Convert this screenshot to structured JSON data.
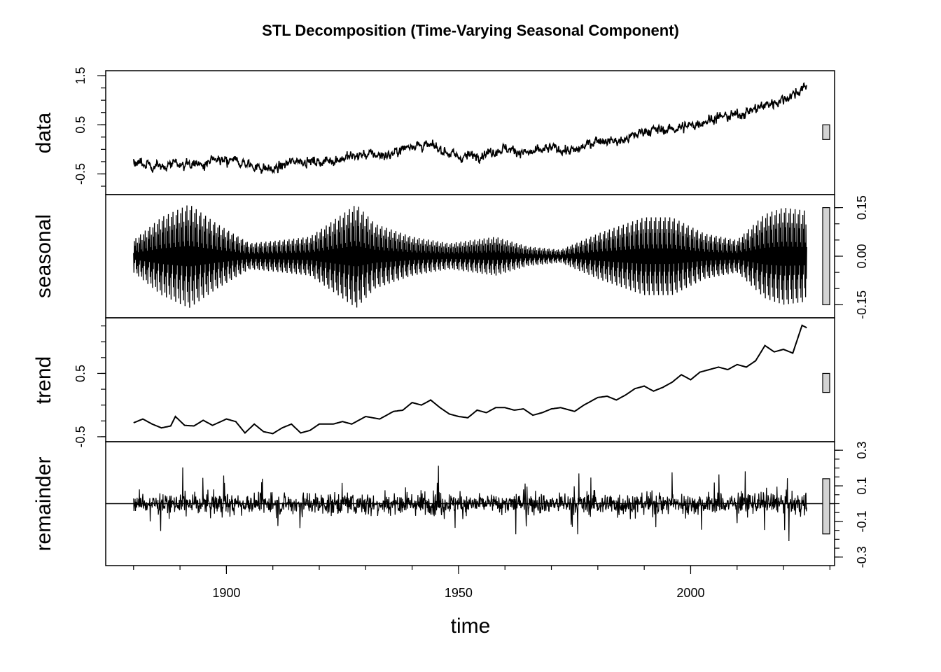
{
  "chart_data": {
    "type": "line",
    "title": "STL Decomposition (Time-Varying Seasonal Component)",
    "xlabel": "time",
    "xlim": [
      1874,
      2031
    ],
    "x_ticks": [
      "1900",
      "1950",
      "2000"
    ],
    "x_start": 1880,
    "x_end": 2025,
    "grid": false,
    "panels": [
      {
        "name": "data",
        "ylim": [
          -0.82,
          1.5
        ],
        "y_ticks": [
          "-0.5",
          "0.5",
          "1.5"
        ],
        "axis_side": "left",
        "scale_bar": [
          0.2,
          0.5
        ],
        "approx_values": [
          {
            "x": 1880,
            "y": -0.25
          },
          {
            "x": 1885,
            "y": -0.35
          },
          {
            "x": 1890,
            "y": -0.3
          },
          {
            "x": 1895,
            "y": -0.3
          },
          {
            "x": 1900,
            "y": -0.18
          },
          {
            "x": 1905,
            "y": -0.32
          },
          {
            "x": 1910,
            "y": -0.42
          },
          {
            "x": 1915,
            "y": -0.22
          },
          {
            "x": 1920,
            "y": -0.26
          },
          {
            "x": 1925,
            "y": -0.18
          },
          {
            "x": 1930,
            "y": -0.1
          },
          {
            "x": 1935,
            "y": -0.12
          },
          {
            "x": 1940,
            "y": 0.1
          },
          {
            "x": 1945,
            "y": 0.05
          },
          {
            "x": 1950,
            "y": -0.16
          },
          {
            "x": 1955,
            "y": -0.1
          },
          {
            "x": 1960,
            "y": 0.02
          },
          {
            "x": 1965,
            "y": -0.08
          },
          {
            "x": 1970,
            "y": 0.02
          },
          {
            "x": 1975,
            "y": -0.04
          },
          {
            "x": 1980,
            "y": 0.2
          },
          {
            "x": 1985,
            "y": 0.16
          },
          {
            "x": 1990,
            "y": 0.38
          },
          {
            "x": 1995,
            "y": 0.4
          },
          {
            "x": 2000,
            "y": 0.48
          },
          {
            "x": 2005,
            "y": 0.64
          },
          {
            "x": 2010,
            "y": 0.7
          },
          {
            "x": 2015,
            "y": 0.86
          },
          {
            "x": 2020,
            "y": 1.02
          },
          {
            "x": 2023,
            "y": 1.17
          },
          {
            "x": 2025,
            "y": 1.28
          }
        ]
      },
      {
        "name": "seasonal",
        "ylim": [
          -0.175,
          0.175
        ],
        "y_ticks": [
          "-0.15",
          "0.00",
          "0.15"
        ],
        "axis_side": "right",
        "scale_bar": [
          -0.15,
          0.15
        ],
        "approx_amplitude": [
          {
            "x": 1880,
            "a": 0.05
          },
          {
            "x": 1886,
            "a": 0.12
          },
          {
            "x": 1892,
            "a": 0.16
          },
          {
            "x": 1898,
            "a": 0.1
          },
          {
            "x": 1905,
            "a": 0.04
          },
          {
            "x": 1912,
            "a": 0.05
          },
          {
            "x": 1918,
            "a": 0.06
          },
          {
            "x": 1925,
            "a": 0.13
          },
          {
            "x": 1928,
            "a": 0.16
          },
          {
            "x": 1932,
            "a": 0.1
          },
          {
            "x": 1940,
            "a": 0.06
          },
          {
            "x": 1948,
            "a": 0.04
          },
          {
            "x": 1958,
            "a": 0.06
          },
          {
            "x": 1965,
            "a": 0.03
          },
          {
            "x": 1972,
            "a": 0.02
          },
          {
            "x": 1980,
            "a": 0.07
          },
          {
            "x": 1990,
            "a": 0.12
          },
          {
            "x": 1996,
            "a": 0.12
          },
          {
            "x": 2003,
            "a": 0.07
          },
          {
            "x": 2010,
            "a": 0.05
          },
          {
            "x": 2016,
            "a": 0.13
          },
          {
            "x": 2020,
            "a": 0.15
          },
          {
            "x": 2025,
            "a": 0.14
          }
        ]
      },
      {
        "name": "trend",
        "ylim": [
          -0.5,
          1.3
        ],
        "y_ticks": [
          "-0.5",
          "0.5"
        ],
        "axis_side": "left",
        "scale_bar": [
          0.2,
          0.5
        ],
        "approx_values": [
          {
            "x": 1880,
            "y": -0.28
          },
          {
            "x": 1882,
            "y": -0.22
          },
          {
            "x": 1884,
            "y": -0.3
          },
          {
            "x": 1886,
            "y": -0.36
          },
          {
            "x": 1888,
            "y": -0.33
          },
          {
            "x": 1889,
            "y": -0.18
          },
          {
            "x": 1891,
            "y": -0.32
          },
          {
            "x": 1893,
            "y": -0.33
          },
          {
            "x": 1895,
            "y": -0.24
          },
          {
            "x": 1897,
            "y": -0.32
          },
          {
            "x": 1900,
            "y": -0.22
          },
          {
            "x": 1902,
            "y": -0.26
          },
          {
            "x": 1904,
            "y": -0.44
          },
          {
            "x": 1906,
            "y": -0.3
          },
          {
            "x": 1908,
            "y": -0.42
          },
          {
            "x": 1910,
            "y": -0.45
          },
          {
            "x": 1912,
            "y": -0.36
          },
          {
            "x": 1914,
            "y": -0.3
          },
          {
            "x": 1916,
            "y": -0.44
          },
          {
            "x": 1918,
            "y": -0.4
          },
          {
            "x": 1920,
            "y": -0.3
          },
          {
            "x": 1923,
            "y": -0.3
          },
          {
            "x": 1925,
            "y": -0.26
          },
          {
            "x": 1927,
            "y": -0.3
          },
          {
            "x": 1930,
            "y": -0.18
          },
          {
            "x": 1933,
            "y": -0.22
          },
          {
            "x": 1936,
            "y": -0.1
          },
          {
            "x": 1938,
            "y": -0.08
          },
          {
            "x": 1940,
            "y": 0.04
          },
          {
            "x": 1942,
            "y": 0.0
          },
          {
            "x": 1944,
            "y": 0.08
          },
          {
            "x": 1946,
            "y": -0.04
          },
          {
            "x": 1948,
            "y": -0.14
          },
          {
            "x": 1950,
            "y": -0.18
          },
          {
            "x": 1952,
            "y": -0.2
          },
          {
            "x": 1954,
            "y": -0.08
          },
          {
            "x": 1956,
            "y": -0.12
          },
          {
            "x": 1958,
            "y": -0.04
          },
          {
            "x": 1960,
            "y": -0.04
          },
          {
            "x": 1962,
            "y": -0.08
          },
          {
            "x": 1964,
            "y": -0.06
          },
          {
            "x": 1966,
            "y": -0.16
          },
          {
            "x": 1968,
            "y": -0.12
          },
          {
            "x": 1970,
            "y": -0.06
          },
          {
            "x": 1972,
            "y": -0.04
          },
          {
            "x": 1975,
            "y": -0.1
          },
          {
            "x": 1977,
            "y": 0.0
          },
          {
            "x": 1980,
            "y": 0.12
          },
          {
            "x": 1982,
            "y": 0.14
          },
          {
            "x": 1984,
            "y": 0.08
          },
          {
            "x": 1986,
            "y": 0.16
          },
          {
            "x": 1988,
            "y": 0.26
          },
          {
            "x": 1990,
            "y": 0.3
          },
          {
            "x": 1992,
            "y": 0.22
          },
          {
            "x": 1994,
            "y": 0.28
          },
          {
            "x": 1996,
            "y": 0.36
          },
          {
            "x": 1998,
            "y": 0.48
          },
          {
            "x": 2000,
            "y": 0.4
          },
          {
            "x": 2002,
            "y": 0.52
          },
          {
            "x": 2004,
            "y": 0.56
          },
          {
            "x": 2006,
            "y": 0.6
          },
          {
            "x": 2008,
            "y": 0.56
          },
          {
            "x": 2010,
            "y": 0.64
          },
          {
            "x": 2012,
            "y": 0.6
          },
          {
            "x": 2014,
            "y": 0.7
          },
          {
            "x": 2016,
            "y": 0.94
          },
          {
            "x": 2018,
            "y": 0.84
          },
          {
            "x": 2020,
            "y": 0.88
          },
          {
            "x": 2022,
            "y": 0.82
          },
          {
            "x": 2024,
            "y": 1.26
          },
          {
            "x": 2025,
            "y": 1.22
          }
        ]
      },
      {
        "name": "remainder",
        "ylim": [
          -0.32,
          0.32
        ],
        "y_ticks": [
          "-0.3",
          "-0.1",
          "0.1",
          "0.3"
        ],
        "axis_side": "right",
        "scale_bar": [
          -0.17,
          0.14
        ],
        "reference_line": 0,
        "approx_range": [
          -0.31,
          0.28
        ]
      }
    ]
  }
}
